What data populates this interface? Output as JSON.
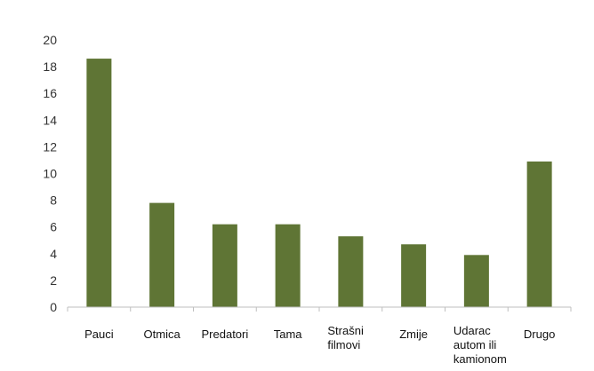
{
  "chart_data": {
    "type": "bar",
    "title": "",
    "xlabel": "",
    "ylabel": "",
    "categories": [
      [
        "Pauci"
      ],
      [
        "Otmica"
      ],
      [
        "Predatori"
      ],
      [
        "Tama"
      ],
      [
        "Strašni",
        "filmovi"
      ],
      [
        "Zmije"
      ],
      [
        "Udarac",
        "autom ili",
        "kamionom"
      ],
      [
        "Drugo"
      ]
    ],
    "values": [
      18.6,
      7.8,
      6.2,
      6.2,
      5.3,
      4.7,
      3.9,
      10.9
    ],
    "ylim": [
      0,
      20
    ],
    "yticks": [
      "0",
      "2",
      "4",
      "6",
      "8",
      "10",
      "12",
      "14",
      "16",
      "18",
      "20"
    ],
    "grid": false,
    "bar_color": "#5f7535",
    "axis_color": "#bfbfbf"
  }
}
